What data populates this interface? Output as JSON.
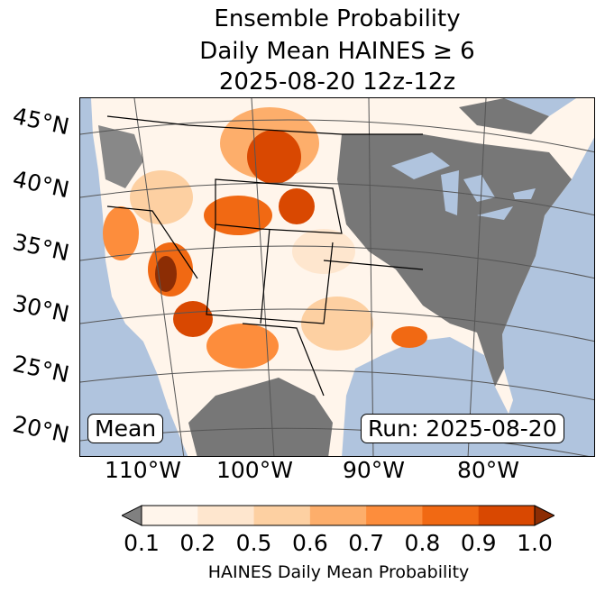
{
  "title": {
    "line1": "Ensemble Probability",
    "line2": "Daily Mean HAINES ≥ 6",
    "line3": "2025-08-20 12z-12z"
  },
  "map": {
    "lat_labels": [
      "45°N",
      "40°N",
      "35°N",
      "30°N",
      "25°N",
      "20°N"
    ],
    "lon_labels": [
      "110°W",
      "100°W",
      "90°W",
      "80°W"
    ],
    "mean_label": "Mean",
    "run_label": "Run: 2025-08-20",
    "colors": {
      "ocean": "#b0c4de",
      "under": "#808080"
    }
  },
  "colorbar": {
    "ticks": [
      "0.1",
      "0.2",
      "0.5",
      "0.6",
      "0.7",
      "0.8",
      "0.9",
      "1.0"
    ],
    "colors": [
      "#fff5eb",
      "#fee6ce",
      "#fdd0a2",
      "#fdae6b",
      "#fd8d3c",
      "#f16913",
      "#d94801"
    ],
    "under_color": "#808080",
    "over_color": "#8c2d04",
    "label": "HAINES Daily Mean Probability"
  }
}
